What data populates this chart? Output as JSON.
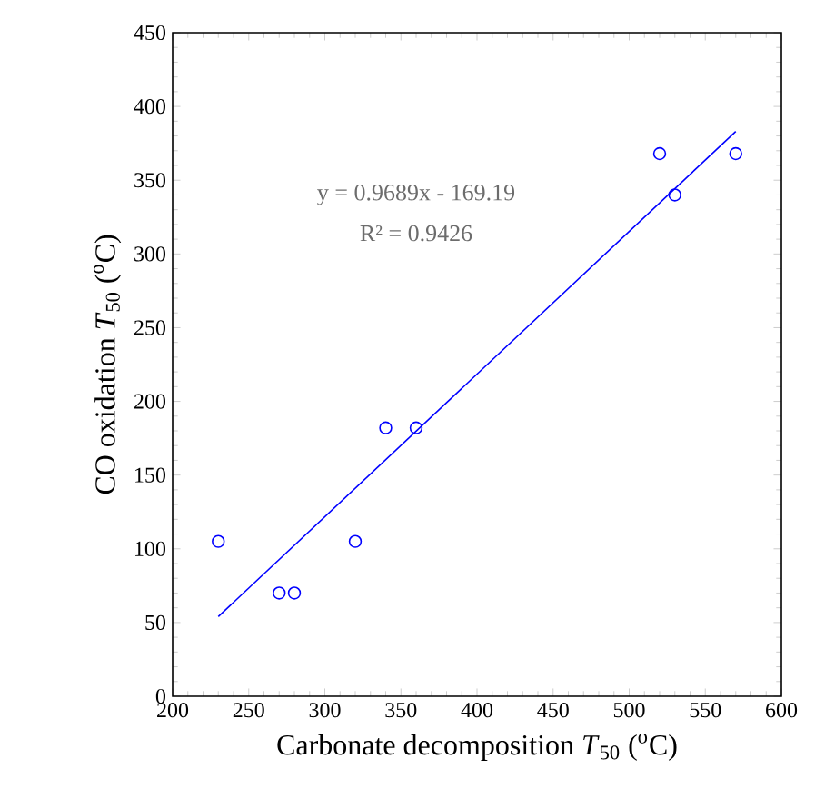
{
  "chart_data": {
    "type": "scatter",
    "xlabel": "Carbonate decomposition *T*$_{50}$ ($^{o}$C)",
    "ylabel": "CO oxidation *T*$_{50}$ ($^{o}$C)",
    "annotations": [
      "y = 0.9689x - 169.19",
      "R² = 0.9426"
    ],
    "series": [
      {
        "color": "#0000ff",
        "marker": "circle",
        "x": [
          230,
          270,
          280,
          320,
          340,
          360,
          520,
          530,
          570
        ],
        "values": [
          105,
          70,
          70,
          105,
          182,
          182,
          368,
          340,
          368
        ]
      },
      {
        "type": "line",
        "color": "#0000ff",
        "marker": "none",
        "line_style": "solid",
        "x": [
          230,
          570
        ],
        "values": [
          54,
          383
        ]
      }
    ],
    "xlim": [
      200,
      600
    ],
    "xticks": [
      200,
      250,
      300,
      350,
      400,
      450,
      500,
      550,
      600
    ],
    "ylim": [
      0,
      450
    ],
    "yticks": [
      0,
      50,
      100,
      150,
      200,
      250,
      300,
      350,
      400,
      450
    ],
    "grid": false
  }
}
